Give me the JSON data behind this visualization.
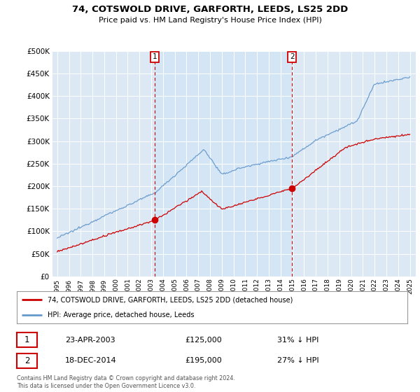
{
  "title": "74, COTSWOLD DRIVE, GARFORTH, LEEDS, LS25 2DD",
  "subtitle": "Price paid vs. HM Land Registry's House Price Index (HPI)",
  "ylim": [
    0,
    500000
  ],
  "yticks": [
    0,
    50000,
    100000,
    150000,
    200000,
    250000,
    300000,
    350000,
    400000,
    450000,
    500000
  ],
  "background_color": "#dce9f5",
  "shade_color": "#d0e4f7",
  "legend_label_red": "74, COTSWOLD DRIVE, GARFORTH, LEEDS, LS25 2DD (detached house)",
  "legend_label_blue": "HPI: Average price, detached house, Leeds",
  "sale1_date": "23-APR-2003",
  "sale1_price": 125000,
  "sale1_pct": "31% ↓ HPI",
  "sale2_date": "18-DEC-2014",
  "sale2_price": 195000,
  "sale2_pct": "27% ↓ HPI",
  "footer": "Contains HM Land Registry data © Crown copyright and database right 2024.\nThis data is licensed under the Open Government Licence v3.0.",
  "red_color": "#cc0000",
  "blue_color": "#6699cc",
  "vline_color": "#cc0000",
  "x_start_year": 1995,
  "x_end_year": 2025,
  "sale1_year": 2003.31,
  "sale2_year": 2014.97
}
